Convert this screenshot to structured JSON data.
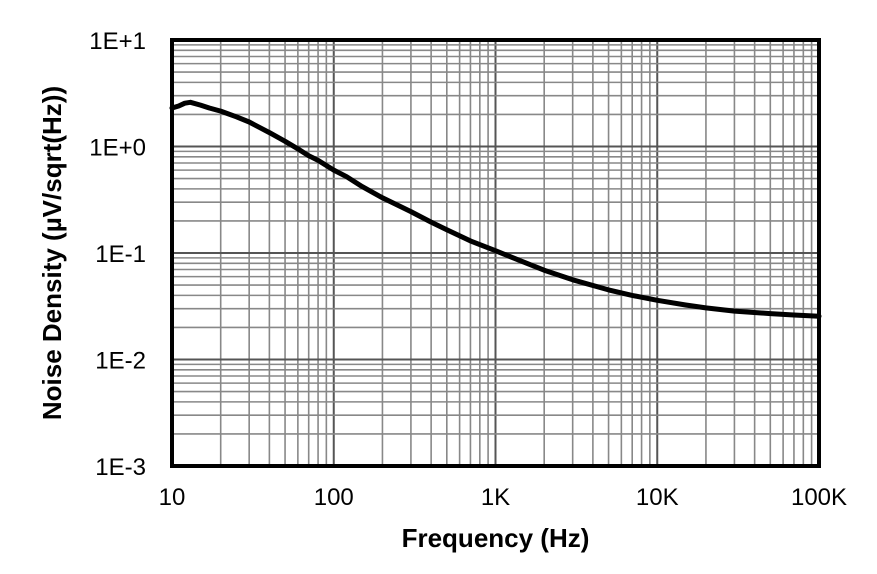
{
  "chart_data": {
    "type": "line",
    "title": "",
    "xlabel": "Frequency (Hz)",
    "ylabel": "Noise Density (µV/sqrt(Hz))",
    "x_scale": "log",
    "y_scale": "log",
    "xlim": [
      10,
      100000
    ],
    "ylim": [
      0.001,
      10
    ],
    "grid": true,
    "legend": "none",
    "x_ticks": [
      {
        "value": 10,
        "label": "10"
      },
      {
        "value": 100,
        "label": "100"
      },
      {
        "value": 1000,
        "label": "1K"
      },
      {
        "value": 10000,
        "label": "10K"
      },
      {
        "value": 100000,
        "label": "100K"
      }
    ],
    "y_ticks": [
      {
        "value": 10,
        "label": "1E+1"
      },
      {
        "value": 1,
        "label": "1E+0"
      },
      {
        "value": 0.1,
        "label": "1E-1"
      },
      {
        "value": 0.01,
        "label": "1E-2"
      },
      {
        "value": 0.001,
        "label": "1E-3"
      }
    ],
    "colors": {
      "line": "#000000",
      "grid": "#888888",
      "frame": "#000000"
    },
    "series": [
      {
        "x": [
          10,
          11,
          12,
          13,
          15,
          17,
          20,
          25,
          30,
          35,
          40,
          50,
          60,
          70,
          80,
          100,
          120,
          150,
          200,
          250,
          300,
          400,
          500,
          700,
          1000,
          1500,
          2000,
          3000,
          5000,
          7000,
          10000,
          15000,
          20000,
          30000,
          50000,
          70000,
          100000
        ],
        "y": [
          2.3,
          2.4,
          2.55,
          2.6,
          2.45,
          2.3,
          2.15,
          1.9,
          1.7,
          1.5,
          1.35,
          1.12,
          0.95,
          0.82,
          0.74,
          0.6,
          0.52,
          0.42,
          0.33,
          0.28,
          0.245,
          0.195,
          0.165,
          0.13,
          0.105,
          0.082,
          0.069,
          0.056,
          0.045,
          0.04,
          0.036,
          0.0325,
          0.0305,
          0.0285,
          0.027,
          0.0262,
          0.0255
        ]
      }
    ]
  }
}
